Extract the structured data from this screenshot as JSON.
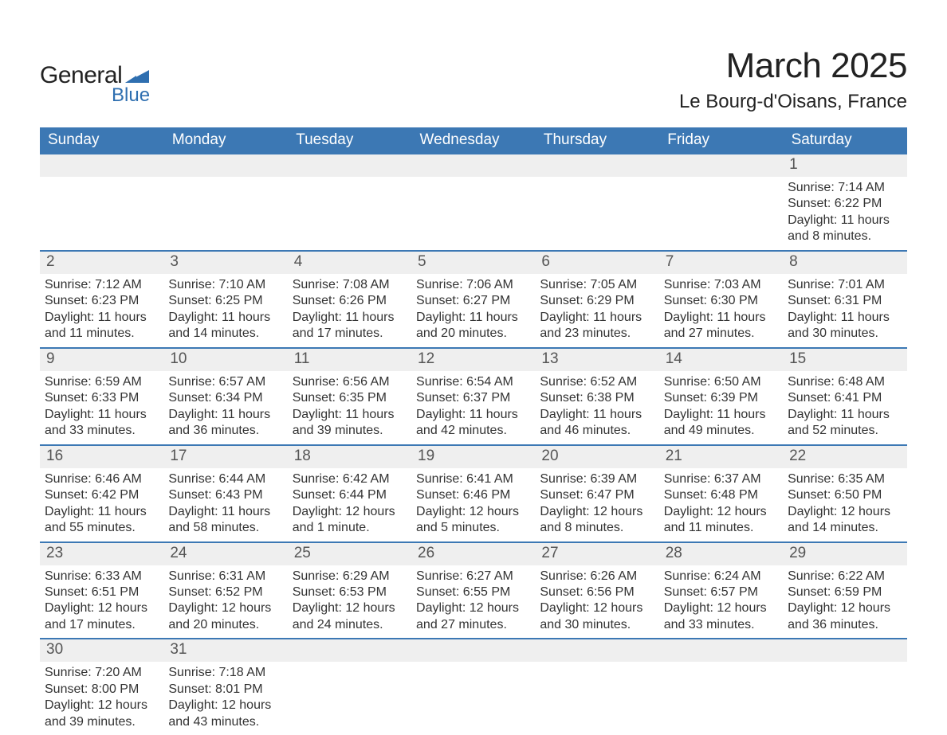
{
  "logo": {
    "word1": "General",
    "word2": "Blue",
    "flag_color": "#2f6fb0"
  },
  "title": "March 2025",
  "subtitle": "Le Bourg-d'Oisans, France",
  "colors": {
    "header_bg": "#3c78b4",
    "header_text": "#ffffff",
    "row_divider": "#3c78b4",
    "daynum_bg": "#efefef",
    "text": "#333333"
  },
  "typography": {
    "title_fontsize": 44,
    "subtitle_fontsize": 24,
    "weekday_fontsize": 19,
    "daynum_fontsize": 19,
    "body_fontsize": 16
  },
  "weekdays": [
    "Sunday",
    "Monday",
    "Tuesday",
    "Wednesday",
    "Thursday",
    "Friday",
    "Saturday"
  ],
  "weeks": [
    [
      null,
      null,
      null,
      null,
      null,
      null,
      {
        "n": "1",
        "sr": "Sunrise: 7:14 AM",
        "ss": "Sunset: 6:22 PM",
        "d1": "Daylight: 11 hours",
        "d2": "and 8 minutes."
      }
    ],
    [
      {
        "n": "2",
        "sr": "Sunrise: 7:12 AM",
        "ss": "Sunset: 6:23 PM",
        "d1": "Daylight: 11 hours",
        "d2": "and 11 minutes."
      },
      {
        "n": "3",
        "sr": "Sunrise: 7:10 AM",
        "ss": "Sunset: 6:25 PM",
        "d1": "Daylight: 11 hours",
        "d2": "and 14 minutes."
      },
      {
        "n": "4",
        "sr": "Sunrise: 7:08 AM",
        "ss": "Sunset: 6:26 PM",
        "d1": "Daylight: 11 hours",
        "d2": "and 17 minutes."
      },
      {
        "n": "5",
        "sr": "Sunrise: 7:06 AM",
        "ss": "Sunset: 6:27 PM",
        "d1": "Daylight: 11 hours",
        "d2": "and 20 minutes."
      },
      {
        "n": "6",
        "sr": "Sunrise: 7:05 AM",
        "ss": "Sunset: 6:29 PM",
        "d1": "Daylight: 11 hours",
        "d2": "and 23 minutes."
      },
      {
        "n": "7",
        "sr": "Sunrise: 7:03 AM",
        "ss": "Sunset: 6:30 PM",
        "d1": "Daylight: 11 hours",
        "d2": "and 27 minutes."
      },
      {
        "n": "8",
        "sr": "Sunrise: 7:01 AM",
        "ss": "Sunset: 6:31 PM",
        "d1": "Daylight: 11 hours",
        "d2": "and 30 minutes."
      }
    ],
    [
      {
        "n": "9",
        "sr": "Sunrise: 6:59 AM",
        "ss": "Sunset: 6:33 PM",
        "d1": "Daylight: 11 hours",
        "d2": "and 33 minutes."
      },
      {
        "n": "10",
        "sr": "Sunrise: 6:57 AM",
        "ss": "Sunset: 6:34 PM",
        "d1": "Daylight: 11 hours",
        "d2": "and 36 minutes."
      },
      {
        "n": "11",
        "sr": "Sunrise: 6:56 AM",
        "ss": "Sunset: 6:35 PM",
        "d1": "Daylight: 11 hours",
        "d2": "and 39 minutes."
      },
      {
        "n": "12",
        "sr": "Sunrise: 6:54 AM",
        "ss": "Sunset: 6:37 PM",
        "d1": "Daylight: 11 hours",
        "d2": "and 42 minutes."
      },
      {
        "n": "13",
        "sr": "Sunrise: 6:52 AM",
        "ss": "Sunset: 6:38 PM",
        "d1": "Daylight: 11 hours",
        "d2": "and 46 minutes."
      },
      {
        "n": "14",
        "sr": "Sunrise: 6:50 AM",
        "ss": "Sunset: 6:39 PM",
        "d1": "Daylight: 11 hours",
        "d2": "and 49 minutes."
      },
      {
        "n": "15",
        "sr": "Sunrise: 6:48 AM",
        "ss": "Sunset: 6:41 PM",
        "d1": "Daylight: 11 hours",
        "d2": "and 52 minutes."
      }
    ],
    [
      {
        "n": "16",
        "sr": "Sunrise: 6:46 AM",
        "ss": "Sunset: 6:42 PM",
        "d1": "Daylight: 11 hours",
        "d2": "and 55 minutes."
      },
      {
        "n": "17",
        "sr": "Sunrise: 6:44 AM",
        "ss": "Sunset: 6:43 PM",
        "d1": "Daylight: 11 hours",
        "d2": "and 58 minutes."
      },
      {
        "n": "18",
        "sr": "Sunrise: 6:42 AM",
        "ss": "Sunset: 6:44 PM",
        "d1": "Daylight: 12 hours",
        "d2": "and 1 minute."
      },
      {
        "n": "19",
        "sr": "Sunrise: 6:41 AM",
        "ss": "Sunset: 6:46 PM",
        "d1": "Daylight: 12 hours",
        "d2": "and 5 minutes."
      },
      {
        "n": "20",
        "sr": "Sunrise: 6:39 AM",
        "ss": "Sunset: 6:47 PM",
        "d1": "Daylight: 12 hours",
        "d2": "and 8 minutes."
      },
      {
        "n": "21",
        "sr": "Sunrise: 6:37 AM",
        "ss": "Sunset: 6:48 PM",
        "d1": "Daylight: 12 hours",
        "d2": "and 11 minutes."
      },
      {
        "n": "22",
        "sr": "Sunrise: 6:35 AM",
        "ss": "Sunset: 6:50 PM",
        "d1": "Daylight: 12 hours",
        "d2": "and 14 minutes."
      }
    ],
    [
      {
        "n": "23",
        "sr": "Sunrise: 6:33 AM",
        "ss": "Sunset: 6:51 PM",
        "d1": "Daylight: 12 hours",
        "d2": "and 17 minutes."
      },
      {
        "n": "24",
        "sr": "Sunrise: 6:31 AM",
        "ss": "Sunset: 6:52 PM",
        "d1": "Daylight: 12 hours",
        "d2": "and 20 minutes."
      },
      {
        "n": "25",
        "sr": "Sunrise: 6:29 AM",
        "ss": "Sunset: 6:53 PM",
        "d1": "Daylight: 12 hours",
        "d2": "and 24 minutes."
      },
      {
        "n": "26",
        "sr": "Sunrise: 6:27 AM",
        "ss": "Sunset: 6:55 PM",
        "d1": "Daylight: 12 hours",
        "d2": "and 27 minutes."
      },
      {
        "n": "27",
        "sr": "Sunrise: 6:26 AM",
        "ss": "Sunset: 6:56 PM",
        "d1": "Daylight: 12 hours",
        "d2": "and 30 minutes."
      },
      {
        "n": "28",
        "sr": "Sunrise: 6:24 AM",
        "ss": "Sunset: 6:57 PM",
        "d1": "Daylight: 12 hours",
        "d2": "and 33 minutes."
      },
      {
        "n": "29",
        "sr": "Sunrise: 6:22 AM",
        "ss": "Sunset: 6:59 PM",
        "d1": "Daylight: 12 hours",
        "d2": "and 36 minutes."
      }
    ],
    [
      {
        "n": "30",
        "sr": "Sunrise: 7:20 AM",
        "ss": "Sunset: 8:00 PM",
        "d1": "Daylight: 12 hours",
        "d2": "and 39 minutes."
      },
      {
        "n": "31",
        "sr": "Sunrise: 7:18 AM",
        "ss": "Sunset: 8:01 PM",
        "d1": "Daylight: 12 hours",
        "d2": "and 43 minutes."
      },
      null,
      null,
      null,
      null,
      null
    ]
  ]
}
